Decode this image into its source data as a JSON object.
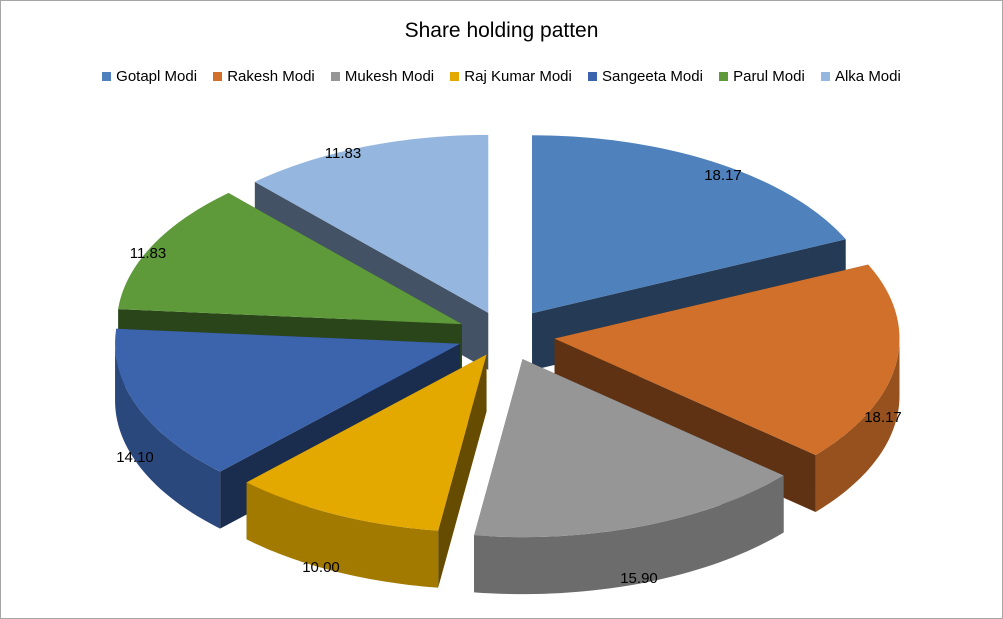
{
  "chart_data": {
    "type": "pie",
    "title": "Share holding patten",
    "legend_position": "top",
    "exploded": true,
    "three_d": true,
    "slices": [
      {
        "label": "Gotapl Modi",
        "value": 18.17,
        "value_label": "18.17",
        "color": "#4f81bd"
      },
      {
        "label": "Rakesh Modi",
        "value": 18.17,
        "value_label": "18.17",
        "color": "#d0702a"
      },
      {
        "label": "Mukesh Modi",
        "value": 15.9,
        "value_label": "15.90",
        "color": "#969696"
      },
      {
        "label": "Raj Kumar Modi",
        "value": 10.0,
        "value_label": "10.00",
        "color": "#e3a900"
      },
      {
        "label": "Sangeeta Modi",
        "value": 14.1,
        "value_label": "14.10",
        "color": "#3c64ad"
      },
      {
        "label": "Parul Modi",
        "value": 11.83,
        "value_label": "11.83",
        "color": "#5e9a3a"
      },
      {
        "label": "Alka Modi",
        "value": 11.83,
        "value_label": "11.83",
        "color": "#95b6de"
      }
    ]
  }
}
